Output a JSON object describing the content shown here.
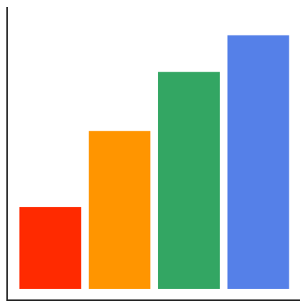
{
  "chart_data": {
    "type": "bar",
    "values": [
      29,
      56,
      77,
      90
    ],
    "colors": [
      "#ff2a00",
      "#ff9500",
      "#33a663",
      "#5580e8"
    ],
    "ylim": [
      0,
      100
    ],
    "grid": false
  }
}
